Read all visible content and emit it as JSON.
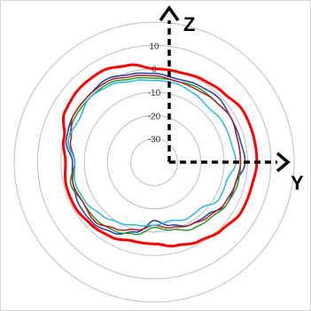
{
  "chart_data": {
    "type": "polar-line",
    "radial_ticks": [
      "10",
      "0",
      "-10",
      "-20",
      "-30"
    ],
    "radial_values": [
      10,
      0,
      -10,
      -20,
      -30
    ],
    "r_range": [
      -40,
      20
    ],
    "grid": true,
    "axis_labels": {
      "z": "Z",
      "y": "Y"
    },
    "angles_deg": [
      0,
      15,
      30,
      45,
      60,
      75,
      90,
      105,
      120,
      135,
      150,
      165,
      180,
      195,
      210,
      225,
      240,
      255,
      270,
      285,
      300,
      315,
      330,
      345
    ],
    "series": [
      {
        "color": "#ff0000",
        "stroke_width": 3,
        "values": [
          0,
          0,
          1,
          2,
          4,
          4,
          4,
          3,
          3,
          1,
          -1,
          -3,
          -5,
          -5,
          -3,
          -2,
          -1,
          -1,
          -2,
          0,
          4,
          5,
          5,
          3
        ]
      },
      {
        "color": "#1f3fa6",
        "stroke_width": 1.5,
        "values": [
          -2,
          -3,
          -2,
          -1,
          -2,
          -2,
          -1,
          -4,
          -4,
          -8,
          -9,
          -12,
          -15,
          -9,
          -5,
          -3,
          -3,
          -4,
          -5,
          -1,
          0,
          0,
          1,
          -1
        ]
      },
      {
        "color": "#2a9a2a",
        "stroke_width": 1.5,
        "values": [
          -4,
          -4,
          -3,
          -3,
          -2,
          -3,
          -3,
          -3,
          -4,
          -6,
          -7,
          -10,
          -12,
          -8,
          -6,
          -5,
          -5,
          -3,
          -6,
          -2,
          -1,
          -1,
          -1,
          -3
        ]
      },
      {
        "color": "#b02020",
        "stroke_width": 1.5,
        "values": [
          -3,
          -4,
          -4,
          -3,
          -2,
          -3,
          -3,
          -4,
          -5,
          -7,
          -9,
          -11,
          -13,
          -10,
          -7,
          -4,
          -5,
          -4,
          -6,
          -3,
          0,
          0,
          0,
          -2
        ]
      },
      {
        "color": "#27b9e2",
        "stroke_width": 1.5,
        "values": [
          -5,
          -5,
          -6,
          -7,
          -6,
          -6,
          -5,
          -8,
          -8,
          -12,
          -12,
          -14,
          -13,
          -12,
          -10,
          -8,
          -6,
          -5,
          -6,
          -2,
          -3,
          -1,
          -2,
          -4
        ]
      }
    ]
  }
}
